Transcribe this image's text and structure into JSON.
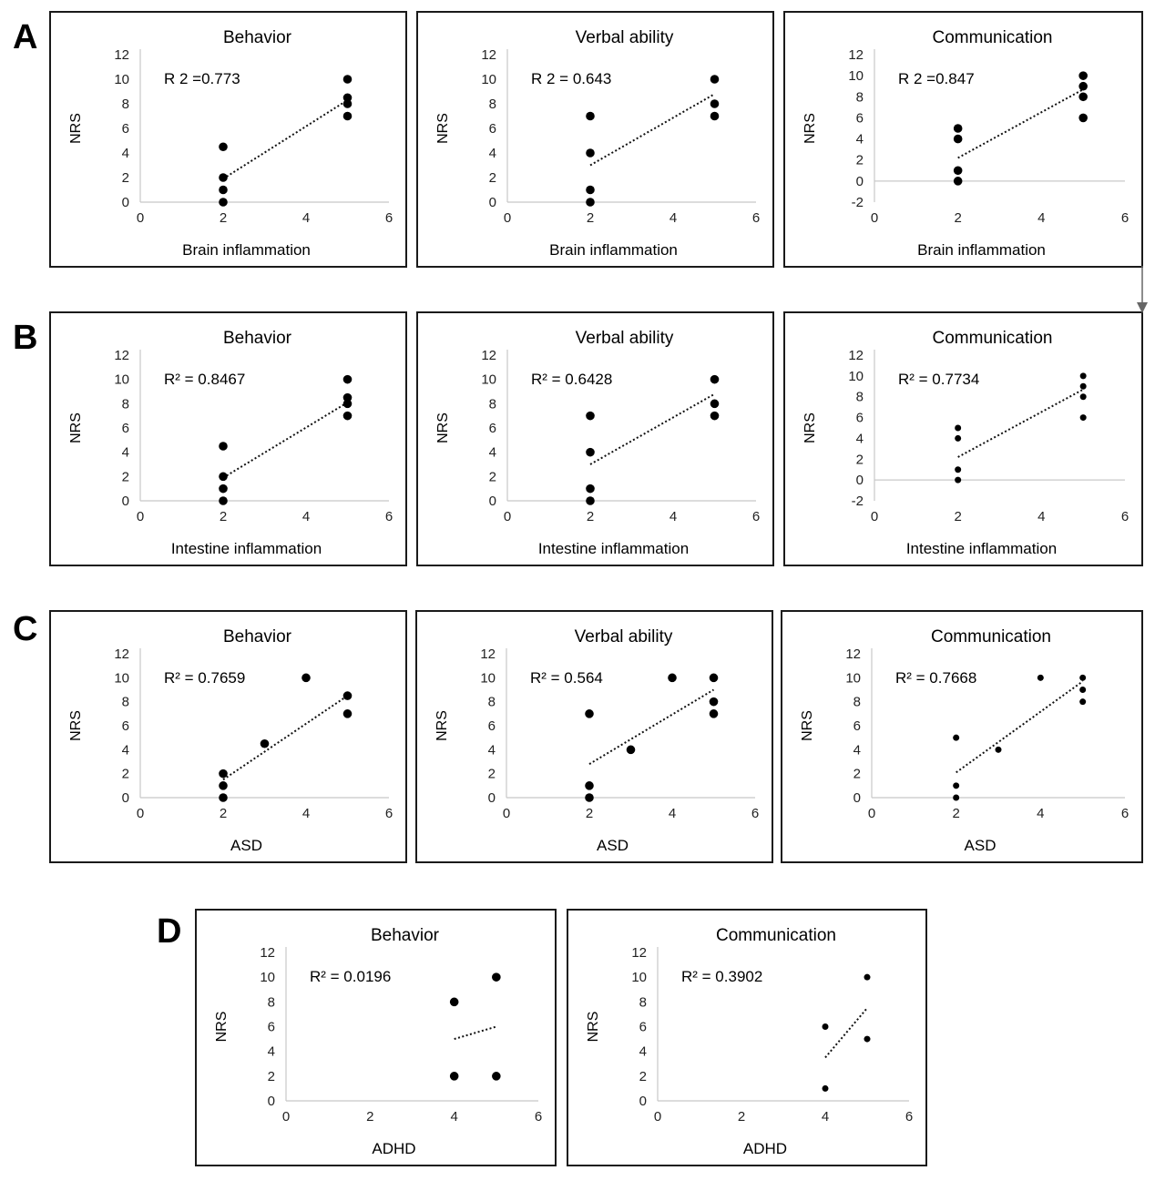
{
  "panel_labels": [
    "A",
    "B",
    "C",
    "D"
  ],
  "chart_data": [
    {
      "type": "scatter",
      "panel": "A",
      "title": "Behavior",
      "r2": "R 2 =0.773",
      "ylabel": "NRS",
      "xlabel": "Brain  inflammation",
      "xlim": [
        0,
        6
      ],
      "ylim": [
        0,
        12
      ],
      "xticks": [
        "0",
        "2",
        "4",
        "6"
      ],
      "yticks": [
        "0",
        "2",
        "4",
        "6",
        "8",
        "10",
        "12"
      ],
      "x": [
        2,
        2,
        2,
        2,
        5,
        5,
        5,
        5
      ],
      "y": [
        0,
        1,
        2,
        4.5,
        7,
        8,
        8.5,
        10
      ],
      "trendline": [
        [
          2,
          1.9
        ],
        [
          5,
          8.3
        ]
      ],
      "marker": "large"
    },
    {
      "type": "scatter",
      "panel": "A",
      "title": "Verbal ability",
      "r2": "R 2 = 0.643",
      "ylabel": "NRS",
      "xlabel": "Brain  inflammation",
      "xlim": [
        0,
        6
      ],
      "ylim": [
        0,
        12
      ],
      "xticks": [
        "0",
        "2",
        "4",
        "6"
      ],
      "yticks": [
        "0",
        "2",
        "4",
        "6",
        "8",
        "10",
        "12"
      ],
      "x": [
        2,
        2,
        2,
        2,
        5,
        5,
        5
      ],
      "y": [
        0,
        1,
        4,
        7,
        7,
        8,
        10
      ],
      "trendline": [
        [
          2,
          3.0
        ],
        [
          5,
          8.8
        ]
      ],
      "marker": "large"
    },
    {
      "type": "scatter",
      "panel": "A",
      "title": "Communication",
      "r2": "R 2 =0.847",
      "ylabel": "NRS",
      "xlabel": "Brain  inflammation",
      "xlim": [
        0,
        6
      ],
      "ylim": [
        -2,
        12
      ],
      "xticks": [
        "0",
        "2",
        "4",
        "6"
      ],
      "yticks": [
        "-2",
        "0",
        "2",
        "4",
        "6",
        "8",
        "10",
        "12"
      ],
      "x": [
        2,
        2,
        2,
        2,
        5,
        5,
        5,
        5
      ],
      "y": [
        0,
        1,
        4,
        5,
        6,
        8,
        9,
        10
      ],
      "trendline": [
        [
          2,
          2.2
        ],
        [
          5,
          8.7
        ]
      ],
      "marker": "large"
    },
    {
      "type": "scatter",
      "panel": "B",
      "title": "Behavior",
      "r2": "R² = 0.8467",
      "ylabel": "NRS",
      "xlabel": "Intestine inflammation",
      "xlim": [
        0,
        6
      ],
      "ylim": [
        0,
        12
      ],
      "xticks": [
        "0",
        "2",
        "4",
        "6"
      ],
      "yticks": [
        "0",
        "2",
        "4",
        "6",
        "8",
        "10",
        "12"
      ],
      "x": [
        2,
        2,
        2,
        2,
        5,
        5,
        5,
        5
      ],
      "y": [
        0,
        1,
        2,
        4.5,
        7,
        8,
        8.5,
        10
      ],
      "trendline": [
        [
          2,
          1.9
        ],
        [
          5,
          8.1
        ]
      ],
      "marker": "large"
    },
    {
      "type": "scatter",
      "panel": "B",
      "title": "Verbal ability",
      "r2": "R² = 0.6428",
      "ylabel": "NRS",
      "xlabel": "Intestine  inflammation",
      "xlim": [
        0,
        6
      ],
      "ylim": [
        0,
        12
      ],
      "xticks": [
        "0",
        "2",
        "4",
        "6"
      ],
      "yticks": [
        "0",
        "2",
        "4",
        "6",
        "8",
        "10",
        "12"
      ],
      "x": [
        2,
        2,
        2,
        2,
        5,
        5,
        5
      ],
      "y": [
        0,
        1,
        4,
        7,
        7,
        8,
        10
      ],
      "trendline": [
        [
          2,
          3.0
        ],
        [
          5,
          8.8
        ]
      ],
      "marker": "large"
    },
    {
      "type": "scatter",
      "panel": "B",
      "title": "Communication",
      "r2": "R² = 0.7734",
      "ylabel": "NRS",
      "xlabel": "Intestine  inflammation",
      "xlim": [
        0,
        6
      ],
      "ylim": [
        -2,
        12
      ],
      "xticks": [
        "0",
        "2",
        "4",
        "6"
      ],
      "yticks": [
        "-2",
        "0",
        "2",
        "4",
        "6",
        "8",
        "10",
        "12"
      ],
      "x": [
        2,
        2,
        2,
        2,
        5,
        5,
        5,
        5
      ],
      "y": [
        0,
        1,
        4,
        5,
        6,
        8,
        9,
        10
      ],
      "trendline": [
        [
          2,
          2.2
        ],
        [
          5,
          8.7
        ]
      ],
      "marker": "small"
    },
    {
      "type": "scatter",
      "panel": "C",
      "title": "Behavior",
      "r2": "R² = 0.7659",
      "ylabel": "NRS",
      "xlabel": "ASD",
      "xlim": [
        0,
        6
      ],
      "ylim": [
        0,
        12
      ],
      "xticks": [
        "0",
        "2",
        "4",
        "6"
      ],
      "yticks": [
        "0",
        "2",
        "4",
        "6",
        "8",
        "10",
        "12"
      ],
      "x": [
        2,
        2,
        2,
        3,
        4,
        5,
        5
      ],
      "y": [
        0,
        1,
        2,
        4.5,
        10,
        7,
        8.5
      ],
      "trendline": [
        [
          2,
          1.5
        ],
        [
          5,
          8.5
        ]
      ],
      "marker": "large"
    },
    {
      "type": "scatter",
      "panel": "C",
      "title": "Verbal ability",
      "r2": "R² = 0.564",
      "ylabel": "NRS",
      "xlabel": "ASD",
      "xlim": [
        0,
        6
      ],
      "ylim": [
        0,
        12
      ],
      "xticks": [
        "0",
        "2",
        "4",
        "6"
      ],
      "yticks": [
        "0",
        "2",
        "4",
        "6",
        "8",
        "10",
        "12"
      ],
      "x": [
        2,
        2,
        2,
        3,
        4,
        5,
        5,
        5
      ],
      "y": [
        0,
        1,
        7,
        4,
        10,
        7,
        8,
        10
      ],
      "trendline": [
        [
          2,
          2.8
        ],
        [
          5,
          9.0
        ]
      ],
      "marker": "large"
    },
    {
      "type": "scatter",
      "panel": "C",
      "title": "Communication",
      "r2": "R² = 0.7668",
      "ylabel": "NRS",
      "xlabel": "ASD",
      "xlim": [
        0,
        6
      ],
      "ylim": [
        0,
        12
      ],
      "xticks": [
        "0",
        "2",
        "4",
        "6"
      ],
      "yticks": [
        "0",
        "2",
        "4",
        "6",
        "8",
        "10",
        "12"
      ],
      "x": [
        2,
        2,
        2,
        3,
        4,
        5,
        5,
        5
      ],
      "y": [
        0,
        1,
        5,
        4,
        10,
        8,
        9,
        10
      ],
      "trendline": [
        [
          2,
          2.1
        ],
        [
          5,
          9.7
        ]
      ],
      "marker": "small"
    },
    {
      "type": "scatter",
      "panel": "D",
      "title": "Behavior",
      "r2": "R² = 0.0196",
      "ylabel": "NRS",
      "xlabel": "ADHD",
      "xlim": [
        0,
        6
      ],
      "ylim": [
        0,
        12
      ],
      "xticks": [
        "0",
        "2",
        "4",
        "6"
      ],
      "yticks": [
        "0",
        "2",
        "4",
        "6",
        "8",
        "10",
        "12"
      ],
      "x": [
        4,
        4,
        5,
        5
      ],
      "y": [
        2,
        8,
        2,
        10
      ],
      "trendline": [
        [
          4,
          5.0
        ],
        [
          5,
          6.0
        ]
      ],
      "marker": "large"
    },
    {
      "type": "scatter",
      "panel": "D",
      "title": "Communication",
      "r2": "R² = 0.3902",
      "ylabel": "NRS",
      "xlabel": "ADHD",
      "xlim": [
        0,
        6
      ],
      "ylim": [
        0,
        12
      ],
      "xticks": [
        "0",
        "2",
        "4",
        "6"
      ],
      "yticks": [
        "0",
        "2",
        "4",
        "6",
        "8",
        "10",
        "12"
      ],
      "x": [
        4,
        4,
        5,
        5
      ],
      "y": [
        1,
        6,
        5,
        10
      ],
      "trendline": [
        [
          4,
          3.5
        ],
        [
          5,
          7.5
        ]
      ],
      "marker": "small"
    }
  ]
}
